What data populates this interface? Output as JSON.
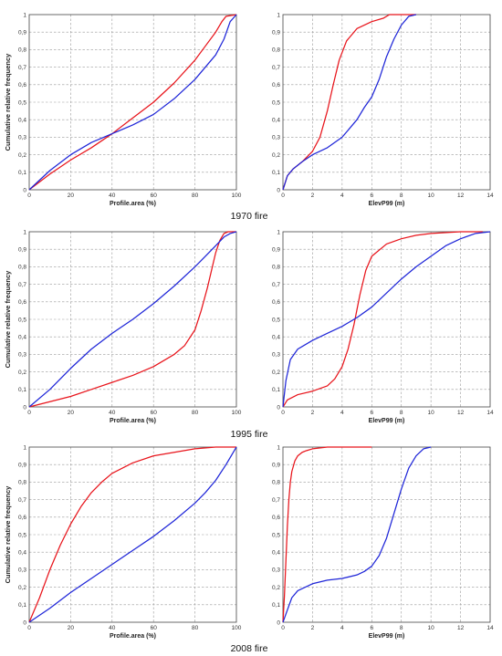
{
  "figure": {
    "ylabel": "Cumulative relative frequency",
    "captions": [
      "1970 fire",
      "1995 fire",
      "2008 fire"
    ]
  },
  "colors": {
    "series_a": "#e8141b",
    "series_b": "#1f26d8"
  },
  "chart_data": [
    {
      "type": "line",
      "row": 0,
      "col": 0,
      "caption": "1970 fire",
      "xlabel": "Profile.area (%)",
      "ylabel": "Cumulative relative frequency",
      "xlim": [
        0,
        100
      ],
      "ylim": [
        0,
        1
      ],
      "xticks": [
        0,
        20,
        40,
        60,
        80,
        100
      ],
      "yticks": [
        0,
        0.1,
        0.2,
        0.3,
        0.4,
        0.5,
        0.6,
        0.7,
        0.8,
        0.9,
        1
      ],
      "ytick_labels": [
        "0",
        "0,1",
        "0,2",
        "0,3",
        "0,4",
        "0,5",
        "0,6",
        "0,7",
        "0,8",
        "0,9",
        "1"
      ],
      "grid": true,
      "series": [
        {
          "color": "#e8141b",
          "x": [
            0,
            10,
            20,
            30,
            40,
            50,
            60,
            70,
            80,
            85,
            90,
            93,
            95,
            100
          ],
          "y": [
            0,
            0.09,
            0.17,
            0.24,
            0.32,
            0.41,
            0.5,
            0.61,
            0.74,
            0.82,
            0.9,
            0.96,
            0.99,
            1
          ]
        },
        {
          "color": "#1f26d8",
          "x": [
            0,
            10,
            20,
            30,
            40,
            50,
            60,
            70,
            80,
            90,
            94,
            97,
            100
          ],
          "y": [
            0,
            0.11,
            0.2,
            0.27,
            0.32,
            0.37,
            0.43,
            0.52,
            0.63,
            0.77,
            0.86,
            0.96,
            1
          ]
        }
      ]
    },
    {
      "type": "line",
      "row": 0,
      "col": 1,
      "caption": "1970 fire",
      "xlabel": "ElevP99 (m)",
      "ylabel": "",
      "xlim": [
        0,
        14
      ],
      "ylim": [
        0,
        1
      ],
      "xticks": [
        0,
        2,
        4,
        6,
        8,
        10,
        12,
        14
      ],
      "yticks": [
        0,
        0.1,
        0.2,
        0.3,
        0.4,
        0.5,
        0.6,
        0.7,
        0.8,
        0.9,
        1
      ],
      "ytick_labels": [
        "0",
        "0,1",
        "0,2",
        "0,3",
        "0,4",
        "0,5",
        "0,6",
        "0,7",
        "0,8",
        "0,9",
        "1"
      ],
      "grid": true,
      "series": [
        {
          "color": "#e8141b",
          "x": [
            0,
            0.3,
            0.7,
            1.3,
            2,
            2.5,
            3,
            3.4,
            3.8,
            4.3,
            5,
            6,
            6.8,
            7.2,
            8,
            9
          ],
          "y": [
            0,
            0.08,
            0.12,
            0.16,
            0.22,
            0.3,
            0.45,
            0.6,
            0.74,
            0.85,
            0.92,
            0.96,
            0.98,
            1,
            1,
            1
          ]
        },
        {
          "color": "#1f26d8",
          "x": [
            0,
            0.3,
            0.7,
            1.3,
            2,
            3,
            4,
            5,
            5.5,
            6,
            6.5,
            7,
            7.5,
            8,
            8.5,
            9
          ],
          "y": [
            0,
            0.08,
            0.12,
            0.16,
            0.2,
            0.24,
            0.3,
            0.4,
            0.47,
            0.53,
            0.63,
            0.76,
            0.86,
            0.94,
            0.99,
            1
          ]
        }
      ]
    },
    {
      "type": "line",
      "row": 1,
      "col": 0,
      "caption": "1995 fire",
      "xlabel": "Profile.area (%)",
      "ylabel": "Cumulative relative frequency",
      "xlim": [
        0,
        100
      ],
      "ylim": [
        0,
        1
      ],
      "xticks": [
        0,
        20,
        40,
        60,
        80,
        100
      ],
      "yticks": [
        0,
        0.1,
        0.2,
        0.3,
        0.4,
        0.5,
        0.6,
        0.7,
        0.8,
        0.9,
        1
      ],
      "ytick_labels": [
        "0",
        "0,1",
        "0,2",
        "0,3",
        "0,4",
        "0,5",
        "0,6",
        "0,7",
        "0,8",
        "0,9",
        "1"
      ],
      "grid": true,
      "series": [
        {
          "color": "#e8141b",
          "x": [
            0,
            10,
            20,
            30,
            40,
            50,
            60,
            70,
            75,
            80,
            83,
            86,
            88,
            90,
            92,
            94,
            96,
            100
          ],
          "y": [
            0,
            0.03,
            0.06,
            0.1,
            0.14,
            0.18,
            0.23,
            0.3,
            0.35,
            0.44,
            0.55,
            0.68,
            0.78,
            0.88,
            0.95,
            0.99,
            1,
            1
          ]
        },
        {
          "color": "#1f26d8",
          "x": [
            0,
            10,
            20,
            30,
            40,
            50,
            60,
            70,
            80,
            85,
            90,
            94,
            97,
            100
          ],
          "y": [
            0,
            0.1,
            0.22,
            0.33,
            0.42,
            0.5,
            0.59,
            0.69,
            0.8,
            0.86,
            0.92,
            0.97,
            0.99,
            1
          ]
        }
      ]
    },
    {
      "type": "line",
      "row": 1,
      "col": 1,
      "caption": "1995 fire",
      "xlabel": "ElevP99 (m)",
      "ylabel": "",
      "xlim": [
        0,
        14
      ],
      "ylim": [
        0,
        1
      ],
      "xticks": [
        0,
        2,
        4,
        6,
        8,
        10,
        12,
        14
      ],
      "yticks": [
        0,
        0.1,
        0.2,
        0.3,
        0.4,
        0.5,
        0.6,
        0.7,
        0.8,
        0.9,
        1
      ],
      "ytick_labels": [
        "0",
        "0,1",
        "0,2",
        "0,3",
        "0,4",
        "0,5",
        "0,6",
        "0,7",
        "0,8",
        "0,9",
        "1"
      ],
      "grid": true,
      "series": [
        {
          "color": "#e8141b",
          "x": [
            0,
            0.3,
            1,
            2,
            3,
            3.5,
            4,
            4.4,
            4.8,
            5.2,
            5.6,
            6,
            7,
            8,
            9,
            10,
            12,
            13.5
          ],
          "y": [
            0,
            0.04,
            0.07,
            0.09,
            0.12,
            0.16,
            0.23,
            0.33,
            0.47,
            0.64,
            0.78,
            0.86,
            0.93,
            0.96,
            0.98,
            0.99,
            1,
            1
          ]
        },
        {
          "color": "#1f26d8",
          "x": [
            0,
            0.2,
            0.5,
            1,
            2,
            3,
            4,
            5,
            6,
            7,
            8,
            9,
            10,
            11,
            12,
            13,
            14
          ],
          "y": [
            0,
            0.15,
            0.27,
            0.33,
            0.38,
            0.42,
            0.46,
            0.51,
            0.57,
            0.65,
            0.73,
            0.8,
            0.86,
            0.92,
            0.96,
            0.99,
            1
          ]
        }
      ]
    },
    {
      "type": "line",
      "row": 2,
      "col": 0,
      "caption": "2008 fire",
      "xlabel": "Profile.area (%)",
      "ylabel": "Cumulative relative frequency",
      "xlim": [
        0,
        100
      ],
      "ylim": [
        0,
        1
      ],
      "xticks": [
        0,
        20,
        40,
        60,
        80,
        100
      ],
      "yticks": [
        0,
        0.1,
        0.2,
        0.3,
        0.4,
        0.5,
        0.6,
        0.7,
        0.8,
        0.9,
        1
      ],
      "ytick_labels": [
        "0",
        "0,1",
        "0,2",
        "0,3",
        "0,4",
        "0,5",
        "0,6",
        "0,7",
        "0,8",
        "0,9",
        "1"
      ],
      "grid": true,
      "series": [
        {
          "color": "#e8141b",
          "x": [
            0,
            5,
            10,
            15,
            20,
            25,
            30,
            35,
            40,
            50,
            60,
            70,
            80,
            90,
            100
          ],
          "y": [
            0,
            0.14,
            0.3,
            0.44,
            0.56,
            0.66,
            0.74,
            0.8,
            0.85,
            0.91,
            0.95,
            0.97,
            0.99,
            1,
            1
          ]
        },
        {
          "color": "#1f26d8",
          "x": [
            0,
            10,
            20,
            30,
            40,
            50,
            60,
            70,
            80,
            85,
            90,
            95,
            100
          ],
          "y": [
            0,
            0.08,
            0.17,
            0.25,
            0.33,
            0.41,
            0.49,
            0.58,
            0.68,
            0.74,
            0.81,
            0.9,
            1
          ]
        }
      ]
    },
    {
      "type": "line",
      "row": 2,
      "col": 1,
      "caption": "2008 fire",
      "xlabel": "ElevP99 (m)",
      "ylabel": "",
      "xlim": [
        0,
        14
      ],
      "ylim": [
        0,
        1
      ],
      "xticks": [
        0,
        2,
        4,
        6,
        8,
        10,
        12,
        14
      ],
      "yticks": [
        0,
        0.1,
        0.2,
        0.3,
        0.4,
        0.5,
        0.6,
        0.7,
        0.8,
        0.9,
        1
      ],
      "ytick_labels": [
        "0",
        "0,1",
        "0,2",
        "0,3",
        "0,4",
        "0,5",
        "0,6",
        "0,7",
        "0,8",
        "0,9",
        "1"
      ],
      "grid": true,
      "series": [
        {
          "color": "#e8141b",
          "x": [
            0,
            0.1,
            0.2,
            0.3,
            0.4,
            0.5,
            0.6,
            0.8,
            1,
            1.3,
            1.6,
            2,
            3,
            4,
            6
          ],
          "y": [
            0,
            0.15,
            0.35,
            0.55,
            0.7,
            0.8,
            0.86,
            0.92,
            0.95,
            0.97,
            0.98,
            0.99,
            1,
            1,
            1
          ]
        },
        {
          "color": "#1f26d8",
          "x": [
            0,
            0.3,
            0.6,
            1,
            2,
            3,
            4,
            5,
            5.5,
            6,
            6.5,
            7,
            7.5,
            8,
            8.5,
            9,
            9.5,
            10
          ],
          "y": [
            0,
            0.07,
            0.14,
            0.18,
            0.22,
            0.24,
            0.25,
            0.27,
            0.29,
            0.32,
            0.38,
            0.48,
            0.62,
            0.76,
            0.88,
            0.95,
            0.99,
            1
          ]
        }
      ]
    }
  ]
}
